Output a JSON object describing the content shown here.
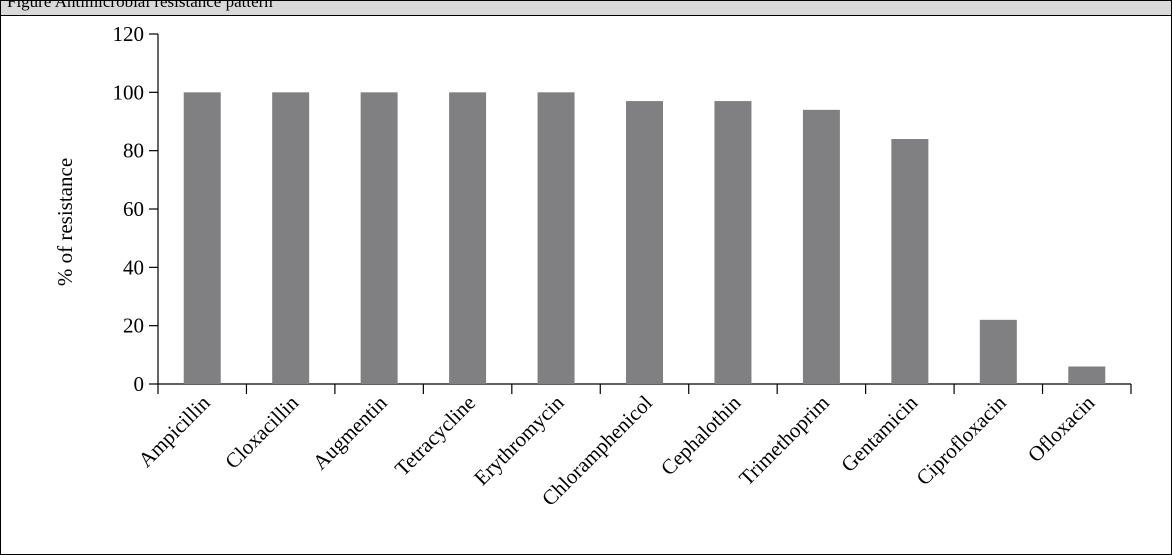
{
  "header": {
    "text": "Figure  Antimicrobial resistance pattern"
  },
  "chart_data": {
    "type": "bar",
    "title": "",
    "xlabel": "",
    "ylabel": "% of resistance",
    "ylim": [
      0,
      120
    ],
    "yticks": [
      0,
      20,
      40,
      60,
      80,
      100,
      120
    ],
    "grid": false,
    "bar_color": "#808083",
    "categories": [
      "Ampicillin",
      "Cloxacillin",
      "Augmentin",
      "Tetracycline",
      "Erythromycin",
      "Chloramphenicol",
      "Cephalothin",
      "Trimethoprim",
      "Gentamicin",
      "Ciprofloxacin",
      "Ofloxacin"
    ],
    "values": [
      100,
      100,
      100,
      100,
      100,
      97,
      97,
      94,
      84,
      22,
      6
    ]
  }
}
